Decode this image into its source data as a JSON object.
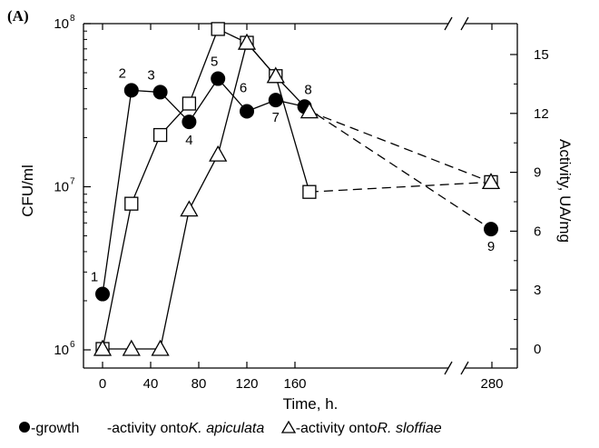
{
  "panel_label": "(A)",
  "chart_data": {
    "type": "line",
    "xlabel": "Time, h.",
    "ylabel_left": "CFU/ml",
    "ylabel_right": "Activity, UA/mg",
    "x_ticks": [
      "0",
      "40",
      "80",
      "120",
      "160",
      "280"
    ],
    "x_break_note": "axis break between 160 and 280",
    "y_left_scale": "log",
    "y_left_ticks": [
      "10",
      "10",
      "10"
    ],
    "y_left_tick_exponents": [
      "8",
      "7",
      "6"
    ],
    "y_left_range": [
      1000000,
      100000000
    ],
    "y_right_ticks": [
      "0",
      "3",
      "6",
      "9",
      "12",
      "15"
    ],
    "y_right_range": [
      0,
      17
    ],
    "legend_position": "bottom",
    "series": [
      {
        "name": "-growth",
        "axis": "left",
        "marker": "filled-circle",
        "x": [
          0,
          24,
          48,
          72,
          96,
          120,
          144,
          168,
          288
        ],
        "values": [
          2200000,
          39000000,
          38000000,
          25000000,
          46000000,
          29000000,
          34000000,
          31000000,
          5500000
        ],
        "point_labels": [
          "1",
          "2",
          "3",
          "4",
          "5",
          "6",
          "7",
          "8",
          "9"
        ]
      },
      {
        "name": "-activity onto K. apiculata",
        "axis": "right",
        "marker": "open-square",
        "x": [
          0,
          24,
          48,
          72,
          96,
          120,
          144,
          172,
          288
        ],
        "values": [
          0,
          7.4,
          10.9,
          12.5,
          16.3,
          15.6,
          13.9,
          8.0,
          8.5
        ]
      },
      {
        "name": "-activity onto R. sloffiae",
        "axis": "right",
        "marker": "open-triangle",
        "x": [
          0,
          24,
          48,
          72,
          96,
          120,
          144,
          172,
          288
        ],
        "values": [
          0,
          0,
          0,
          7.1,
          9.9,
          15.6,
          13.9,
          12.1,
          8.5
        ]
      }
    ]
  },
  "legend": {
    "growth": "-growth",
    "k_prefix": "-activity onto ",
    "k_species": "K. apiculata",
    "r_prefix": "-activity onto ",
    "r_species": "R. sloffiae"
  }
}
